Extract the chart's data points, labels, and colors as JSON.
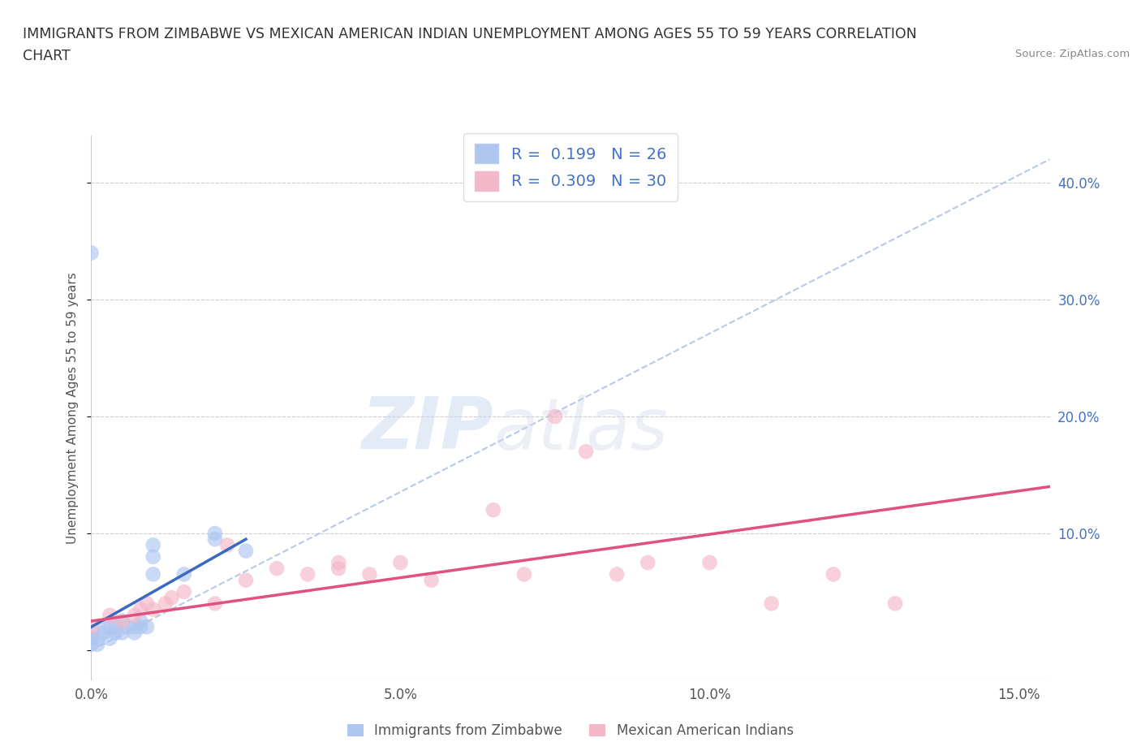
{
  "title_line1": "IMMIGRANTS FROM ZIMBABWE VS MEXICAN AMERICAN INDIAN UNEMPLOYMENT AMONG AGES 55 TO 59 YEARS CORRELATION",
  "title_line2": "CHART",
  "source": "Source: ZipAtlas.com",
  "ylabel": "Unemployment Among Ages 55 to 59 years",
  "xlim": [
    0.0,
    0.155
  ],
  "ylim": [
    -0.025,
    0.44
  ],
  "xticks": [
    0.0,
    0.05,
    0.1,
    0.15
  ],
  "xticklabels": [
    "0.0%",
    "5.0%",
    "10.0%",
    "15.0%"
  ],
  "yticks": [
    0.0,
    0.1,
    0.2,
    0.3,
    0.4
  ],
  "yticklabels_right": [
    "",
    "10.0%",
    "20.0%",
    "30.0%",
    "40.0%"
  ],
  "legend_entries": [
    {
      "label": "R =  0.199   N = 26",
      "color": "#aec6f0"
    },
    {
      "label": "R =  0.309   N = 30",
      "color": "#f4b8c8"
    }
  ],
  "legend_bottom": [
    "Immigrants from Zimbabwe",
    "Mexican American Indians"
  ],
  "blue_scatter_x": [
    0.0,
    0.0,
    0.0,
    0.001,
    0.001,
    0.002,
    0.002,
    0.003,
    0.003,
    0.004,
    0.004,
    0.005,
    0.005,
    0.006,
    0.007,
    0.007,
    0.008,
    0.008,
    0.009,
    0.01,
    0.01,
    0.01,
    0.015,
    0.02,
    0.02,
    0.025
  ],
  "blue_scatter_y": [
    0.005,
    0.01,
    0.015,
    0.005,
    0.01,
    0.015,
    0.02,
    0.01,
    0.02,
    0.015,
    0.02,
    0.015,
    0.025,
    0.02,
    0.015,
    0.02,
    0.02,
    0.025,
    0.02,
    0.065,
    0.08,
    0.09,
    0.065,
    0.1,
    0.095,
    0.085
  ],
  "blue_outlier_x": [
    0.0
  ],
  "blue_outlier_y": [
    0.34
  ],
  "pink_scatter_x": [
    0.0,
    0.003,
    0.005,
    0.007,
    0.008,
    0.009,
    0.01,
    0.012,
    0.013,
    0.015,
    0.02,
    0.022,
    0.025,
    0.03,
    0.035,
    0.04,
    0.04,
    0.045,
    0.05,
    0.055,
    0.065,
    0.07,
    0.075,
    0.08,
    0.085,
    0.09,
    0.1,
    0.11,
    0.12,
    0.13
  ],
  "pink_scatter_y": [
    0.02,
    0.03,
    0.025,
    0.03,
    0.035,
    0.04,
    0.035,
    0.04,
    0.045,
    0.05,
    0.04,
    0.09,
    0.06,
    0.07,
    0.065,
    0.07,
    0.075,
    0.065,
    0.075,
    0.06,
    0.12,
    0.065,
    0.2,
    0.17,
    0.065,
    0.075,
    0.075,
    0.04,
    0.065,
    0.04
  ],
  "blue_line_x": [
    0.0,
    0.025
  ],
  "blue_line_y": [
    0.02,
    0.095
  ],
  "pink_line_x": [
    0.0,
    0.155
  ],
  "pink_line_y": [
    0.025,
    0.14
  ],
  "trendline_x": [
    0.0,
    0.155
  ],
  "trendline_y": [
    0.0,
    0.42
  ],
  "watermark_zip": "ZIP",
  "watermark_atlas": "atlas",
  "blue_color": "#aec6f0",
  "pink_color": "#f4b8c8",
  "blue_line_color": "#3a6abf",
  "pink_line_color": "#e05080",
  "trendline_color": "#b8c8e8",
  "background_color": "#ffffff",
  "grid_color": "#cccccc"
}
